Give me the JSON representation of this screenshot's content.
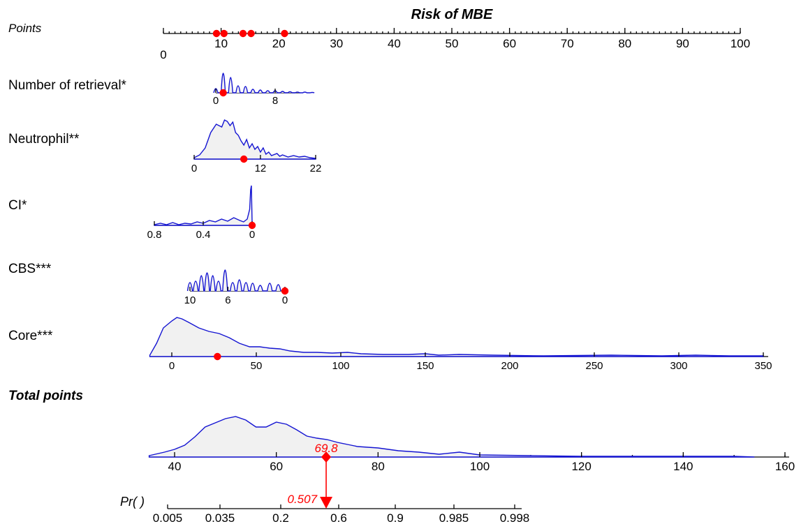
{
  "chart_data": {
    "type": "nomogram",
    "title": "Risk of MBE",
    "colors": {
      "density_line": "#1414d2",
      "density_fill": "#f1f1f1",
      "marker": "#ff0000"
    },
    "points_axis": {
      "label": "Points",
      "ticks": [
        "0",
        "10",
        "20",
        "30",
        "40",
        "50",
        "60",
        "70",
        "80",
        "90",
        "100"
      ],
      "range": [
        0,
        100
      ],
      "selected_points": [
        9.2,
        10.5,
        13.8,
        15.2,
        21.0
      ]
    },
    "variables": [
      {
        "name": "Number of retrieval*",
        "ticks": [
          "0",
          "8"
        ],
        "range": [
          0,
          14
        ],
        "selected": 1
      },
      {
        "name": "Neutrophil**",
        "ticks": [
          "0",
          "12",
          "22"
        ],
        "range": [
          0,
          22
        ],
        "selected": 9
      },
      {
        "name": "CI*",
        "ticks": [
          "0.8",
          "0.4",
          "0"
        ],
        "range": [
          0.8,
          0
        ],
        "selected": 0
      },
      {
        "name": "CBS***",
        "ticks": [
          "10",
          "6",
          "0"
        ],
        "range": [
          10,
          0
        ],
        "selected": 0
      },
      {
        "name": "Core***",
        "ticks": [
          "0",
          "50",
          "100",
          "150",
          "200",
          "250",
          "300",
          "350"
        ],
        "range": [
          0,
          350
        ],
        "selected": 27
      }
    ],
    "total_points": {
      "label": "Total points",
      "ticks": [
        "40",
        "60",
        "80",
        "100",
        "120",
        "140",
        "160"
      ],
      "range": [
        35,
        160
      ],
      "value": 69.8,
      "value_label": "69.8"
    },
    "probability": {
      "label": "Pr( )",
      "ticks": [
        "0.005",
        "0.035",
        "0.2",
        "0.6",
        "0.9",
        "0.985",
        "0.998"
      ],
      "value": 0.507,
      "value_label": "0.507"
    }
  }
}
